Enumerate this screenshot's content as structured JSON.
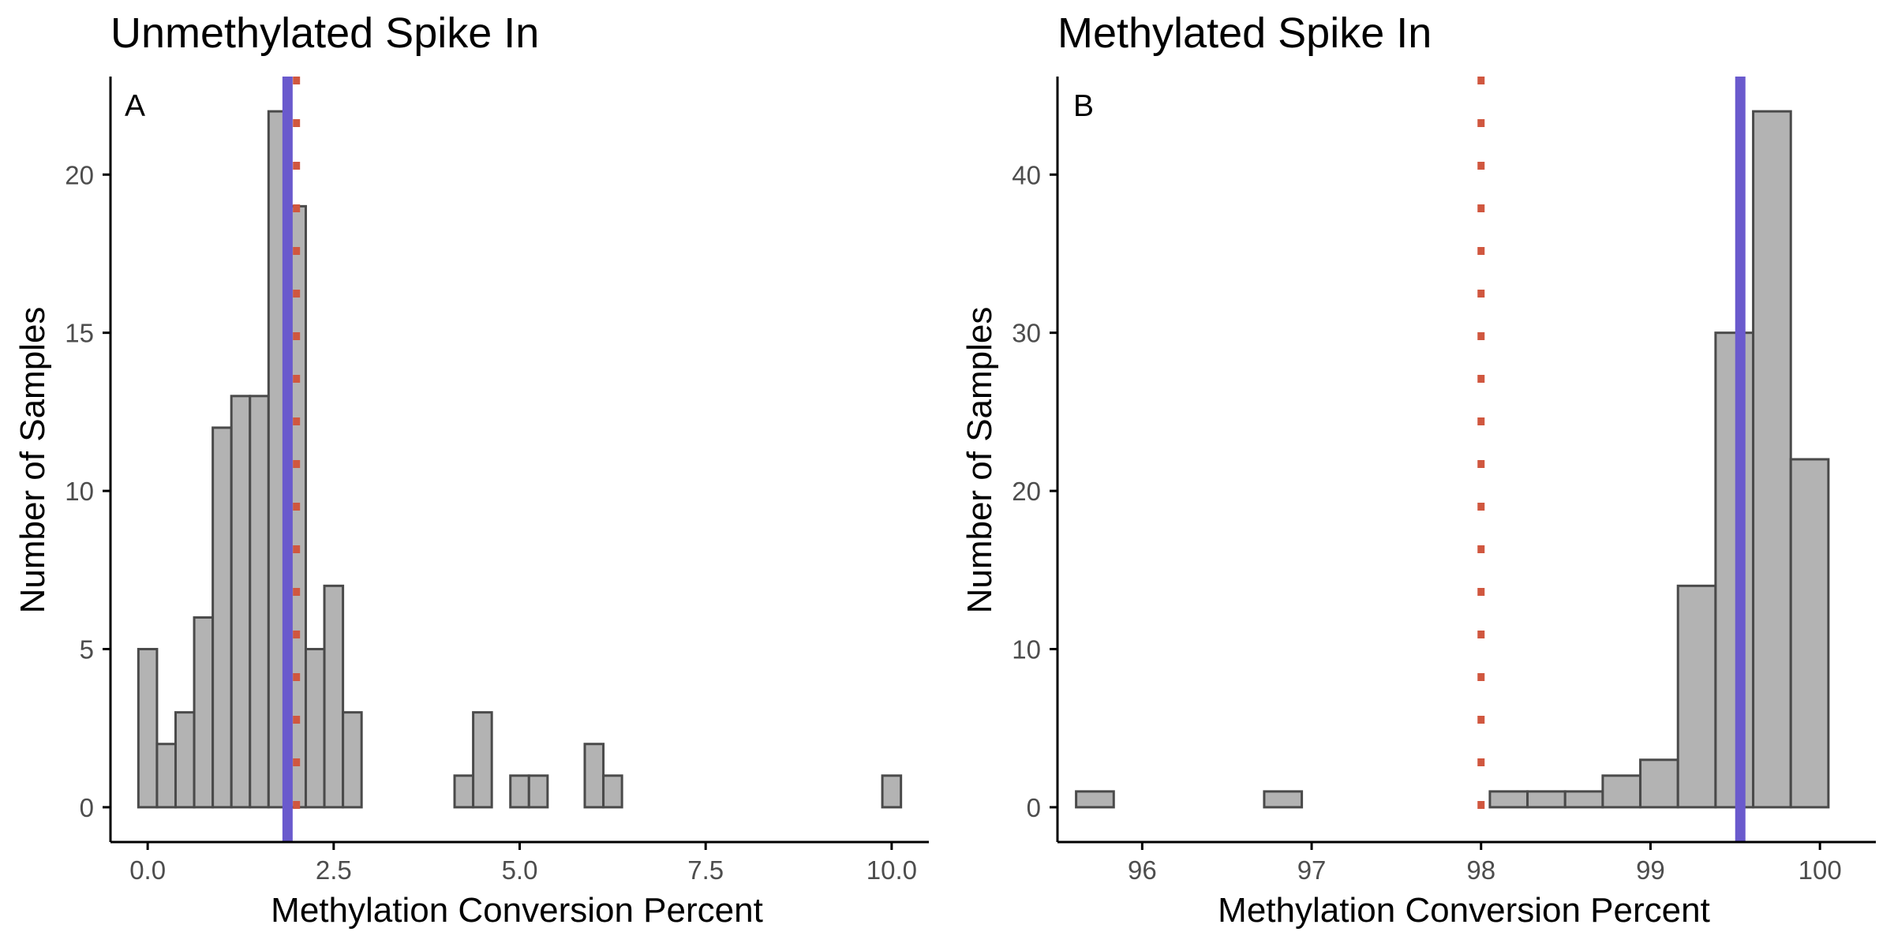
{
  "figure": {
    "panels": [
      "Panel A",
      "Panel B"
    ]
  },
  "colors": {
    "bar_fill": "#b3b3b3",
    "bar_stroke": "#4a4a4a",
    "mean_line": "#6a5acd",
    "threshold_line": "#d0573f",
    "axis": "#000000",
    "tick_label": "#4d4d4d"
  },
  "chart_data": [
    {
      "type": "bar",
      "panel_tag": "A",
      "title": "Unmethylated Spike In",
      "xlabel": "Methylation Conversion Percent",
      "ylabel": "Number of Samples",
      "xlim": [
        -0.5,
        10.5
      ],
      "ylim": [
        -1.1,
        23.1
      ],
      "xticks": [
        0,
        2.5,
        5,
        7.5,
        10
      ],
      "xtick_labels": [
        "0.0",
        "2.5",
        "5.0",
        "7.5",
        "10.0"
      ],
      "yticks": [
        0,
        5,
        10,
        15,
        20
      ],
      "ytick_labels": [
        "0",
        "5",
        "10",
        "15",
        "20"
      ],
      "bin_width": 0.25,
      "bin_start": -0.125,
      "values": [
        5,
        2,
        3,
        6,
        12,
        13,
        13,
        22,
        19,
        5,
        7,
        3,
        0,
        0,
        0,
        0,
        0,
        1,
        3,
        0,
        1,
        1,
        0,
        0,
        2,
        1,
        0,
        0,
        0,
        0,
        0,
        0,
        0,
        0,
        0,
        0,
        0,
        0,
        0,
        0,
        1
      ],
      "mean_line_x": 1.88,
      "threshold_line_x": 2.0,
      "grid": false,
      "legend": "none"
    },
    {
      "type": "bar",
      "panel_tag": "B",
      "title": "Methylated Spike In",
      "xlabel": "Methylation Conversion Percent",
      "ylabel": "Number of Samples",
      "xlim": [
        95.5,
        100.33
      ],
      "ylim": [
        -2.2,
        46.2
      ],
      "xticks": [
        96,
        97,
        98,
        99,
        100
      ],
      "xtick_labels": [
        "96",
        "97",
        "98",
        "99",
        "100"
      ],
      "yticks": [
        0,
        10,
        20,
        30,
        40
      ],
      "ytick_labels": [
        "0",
        "10",
        "20",
        "30",
        "40"
      ],
      "bin_width": 0.222,
      "bin_start": 95.61,
      "values": [
        1,
        0,
        0,
        0,
        0,
        1,
        0,
        0,
        0,
        0,
        0,
        1,
        1,
        1,
        2,
        3,
        14,
        30,
        44,
        22
      ],
      "mean_line_x": 99.53,
      "threshold_line_x": 98.0,
      "grid": false,
      "legend": "none"
    }
  ]
}
